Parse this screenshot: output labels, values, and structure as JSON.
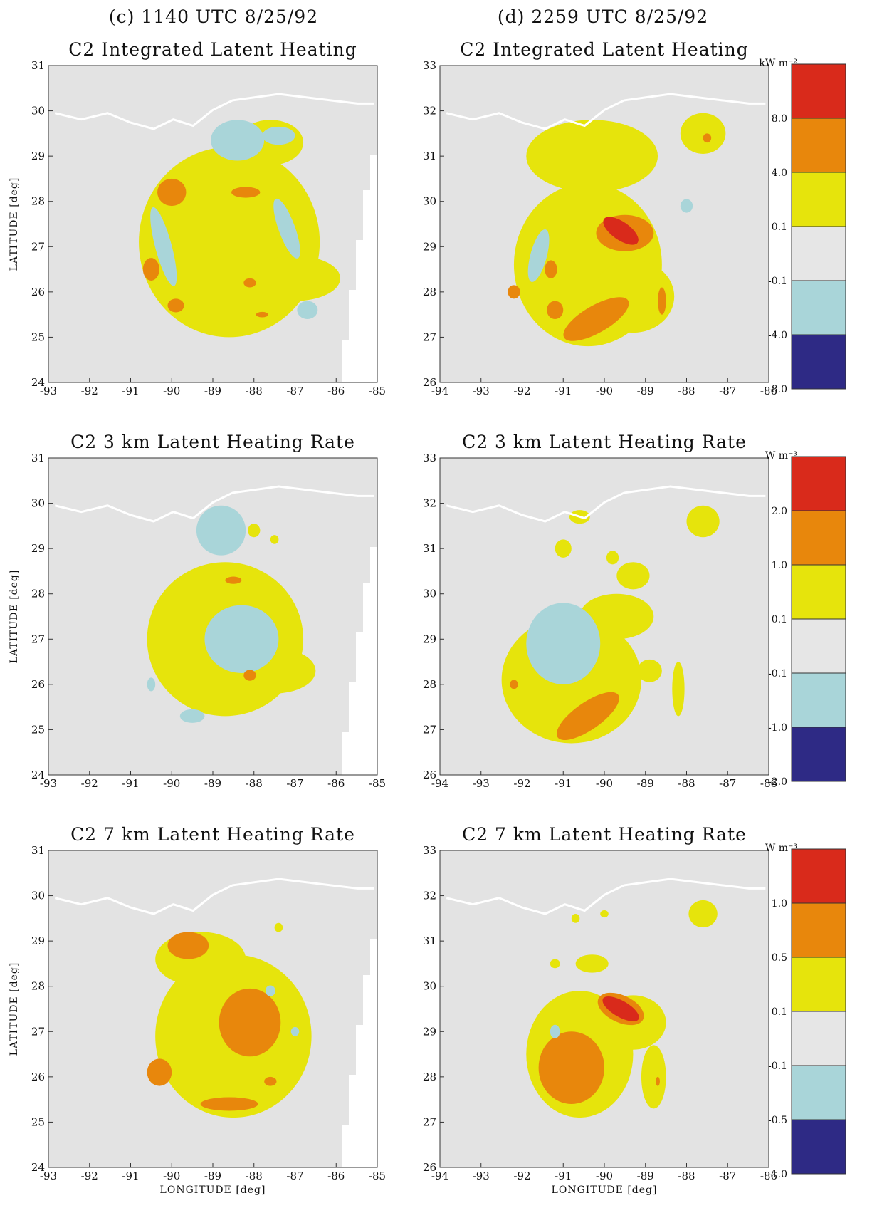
{
  "colors": {
    "plot_bg": "#e3e3e3",
    "coast": "#ffffff",
    "red": "#d92a1b",
    "orange": "#e8870c",
    "yellow": "#e6e40c",
    "lightgray": "#e6e6e6",
    "lightblue": "#a9d5d9",
    "navy": "#2e2a85"
  },
  "columns": [
    {
      "header": "(c) 1140 UTC 8/25/92"
    },
    {
      "header": "(d) 2259 UTC 8/25/92"
    }
  ],
  "rows": [
    {
      "title": "C2 Integrated Latent Heating",
      "unit": "kW m⁻²",
      "levels": [
        "8.0",
        "4.0",
        "0.1",
        "-0.1",
        "-4.0",
        "-8.0"
      ]
    },
    {
      "title": "C2 3 km Latent Heating Rate",
      "unit": "W m⁻³",
      "levels": [
        "2.0",
        "1.0",
        "0.1",
        "-0.1",
        "-1.0",
        "-2.0"
      ]
    },
    {
      "title": "C2 7 km Latent Heating Rate",
      "unit": "W m⁻³",
      "levels": [
        "1.0",
        "0.5",
        "0.1",
        "-0.1",
        "-0.5",
        "-1.0"
      ]
    }
  ],
  "chart_data": [
    {
      "type": "heatmap",
      "column": 0,
      "row": 0,
      "header": "(c) 1140 UTC 8/25/92",
      "title": "C2 Integrated Latent Heating",
      "xlim": [
        -93,
        -85
      ],
      "ylim": [
        24,
        31
      ],
      "xticks": [
        "-93",
        "-92",
        "-91",
        "-90",
        "-89",
        "-88",
        "-87",
        "-86",
        "-85"
      ],
      "yticks": [
        "24",
        "25",
        "26",
        "27",
        "28",
        "29",
        "30",
        "31"
      ],
      "ylabel": "LATITUDE [deg]",
      "xlabel": "",
      "storm_center": [
        -88.6,
        27.2
      ],
      "blobs": [
        {
          "c": "yellow",
          "cx": -88.6,
          "cy": 27.1,
          "rx": 2.2,
          "ry": 2.1
        },
        {
          "c": "yellow",
          "cx": -87.0,
          "cy": 26.3,
          "rx": 1.1,
          "ry": 0.5
        },
        {
          "c": "yellow",
          "cx": -87.6,
          "cy": 29.3,
          "rx": 0.8,
          "ry": 0.5
        },
        {
          "c": "blue",
          "cx": -88.4,
          "cy": 29.35,
          "rx": 0.65,
          "ry": 0.45
        },
        {
          "c": "blue",
          "cx": -87.4,
          "cy": 29.45,
          "rx": 0.4,
          "ry": 0.2
        },
        {
          "c": "blue",
          "cx": -90.2,
          "cy": 27.0,
          "rx": 0.2,
          "ry": 0.9,
          "rot": -15
        },
        {
          "c": "blue",
          "cx": -87.2,
          "cy": 27.4,
          "rx": 0.2,
          "ry": 0.7,
          "rot": -20
        },
        {
          "c": "blue",
          "cx": -86.7,
          "cy": 25.6,
          "rx": 0.25,
          "ry": 0.2
        },
        {
          "c": "orange",
          "cx": -90.0,
          "cy": 28.2,
          "rx": 0.35,
          "ry": 0.3
        },
        {
          "c": "orange",
          "cx": -88.2,
          "cy": 28.2,
          "rx": 0.35,
          "ry": 0.12
        },
        {
          "c": "orange",
          "cx": -90.5,
          "cy": 26.5,
          "rx": 0.2,
          "ry": 0.25
        },
        {
          "c": "orange",
          "cx": -89.9,
          "cy": 25.7,
          "rx": 0.2,
          "ry": 0.15
        },
        {
          "c": "orange",
          "cx": -88.1,
          "cy": 26.2,
          "rx": 0.15,
          "ry": 0.1
        },
        {
          "c": "orange",
          "cx": -87.8,
          "cy": 25.5,
          "rx": 0.15,
          "ry": 0.06
        }
      ]
    },
    {
      "type": "heatmap",
      "column": 1,
      "row": 0,
      "header": "(d) 2259 UTC 8/25/92",
      "title": "C2 Integrated Latent Heating",
      "xlim": [
        -94,
        -86
      ],
      "ylim": [
        26,
        33
      ],
      "xticks": [
        "-94",
        "-93",
        "-92",
        "-91",
        "-90",
        "-89",
        "-88",
        "-87",
        "-86"
      ],
      "yticks": [
        "26",
        "27",
        "28",
        "29",
        "30",
        "31",
        "32",
        "33"
      ],
      "ylabel": "",
      "xlabel": "",
      "storm_center": [
        -90.2,
        28.4
      ],
      "blobs": [
        {
          "c": "yellow",
          "cx": -90.4,
          "cy": 28.6,
          "rx": 1.8,
          "ry": 1.8
        },
        {
          "c": "yellow",
          "cx": -90.3,
          "cy": 31.0,
          "rx": 1.6,
          "ry": 0.8
        },
        {
          "c": "yellow",
          "cx": -87.6,
          "cy": 31.5,
          "rx": 0.55,
          "ry": 0.45
        },
        {
          "c": "yellow",
          "cx": -89.3,
          "cy": 27.9,
          "rx": 1.0,
          "ry": 0.8
        },
        {
          "c": "blue",
          "cx": -91.6,
          "cy": 28.8,
          "rx": 0.2,
          "ry": 0.6,
          "rot": 15
        },
        {
          "c": "blue",
          "cx": -88.0,
          "cy": 29.9,
          "rx": 0.15,
          "ry": 0.15
        },
        {
          "c": "orange",
          "cx": -89.5,
          "cy": 29.3,
          "rx": 0.7,
          "ry": 0.4
        },
        {
          "c": "orange",
          "cx": -90.2,
          "cy": 27.4,
          "rx": 0.9,
          "ry": 0.3,
          "rot": -30
        },
        {
          "c": "orange",
          "cx": -91.3,
          "cy": 28.5,
          "rx": 0.15,
          "ry": 0.2
        },
        {
          "c": "orange",
          "cx": -92.2,
          "cy": 28.0,
          "rx": 0.15,
          "ry": 0.15
        },
        {
          "c": "orange",
          "cx": -91.2,
          "cy": 27.6,
          "rx": 0.2,
          "ry": 0.2
        },
        {
          "c": "orange",
          "cx": -88.6,
          "cy": 27.8,
          "rx": 0.1,
          "ry": 0.3
        },
        {
          "c": "orange",
          "cx": -87.5,
          "cy": 31.4,
          "rx": 0.1,
          "ry": 0.1
        },
        {
          "c": "red",
          "cx": -89.6,
          "cy": 29.35,
          "rx": 0.5,
          "ry": 0.2,
          "rot": 35
        }
      ]
    },
    {
      "type": "heatmap",
      "column": 0,
      "row": 1,
      "header": "",
      "title": "C2 3 km Latent Heating Rate",
      "xlim": [
        -93,
        -85
      ],
      "ylim": [
        24,
        31
      ],
      "xticks": [
        "-93",
        "-92",
        "-91",
        "-90",
        "-89",
        "-88",
        "-87",
        "-86",
        "-85"
      ],
      "yticks": [
        "24",
        "25",
        "26",
        "27",
        "28",
        "29",
        "30",
        "31"
      ],
      "ylabel": "LATITUDE [deg]",
      "xlabel": "",
      "storm_center": [
        -88.3,
        27.0
      ],
      "blobs": [
        {
          "c": "yellow",
          "cx": -88.7,
          "cy": 27.0,
          "rx": 1.9,
          "ry": 1.7
        },
        {
          "c": "yellow",
          "cx": -87.5,
          "cy": 26.3,
          "rx": 1.0,
          "ry": 0.5
        },
        {
          "c": "yellow",
          "cx": -88.0,
          "cy": 29.4,
          "rx": 0.15,
          "ry": 0.15
        },
        {
          "c": "yellow",
          "cx": -87.5,
          "cy": 29.2,
          "rx": 0.1,
          "ry": 0.1
        },
        {
          "c": "blue",
          "cx": -88.3,
          "cy": 27.0,
          "rx": 0.9,
          "ry": 0.75
        },
        {
          "c": "blue",
          "cx": -88.8,
          "cy": 29.4,
          "rx": 0.6,
          "ry": 0.55
        },
        {
          "c": "blue",
          "cx": -89.5,
          "cy": 25.3,
          "rx": 0.3,
          "ry": 0.15
        },
        {
          "c": "blue",
          "cx": -90.5,
          "cy": 26.0,
          "rx": 0.1,
          "ry": 0.15
        },
        {
          "c": "orange",
          "cx": -88.1,
          "cy": 26.2,
          "rx": 0.15,
          "ry": 0.12
        },
        {
          "c": "orange",
          "cx": -88.5,
          "cy": 28.3,
          "rx": 0.2,
          "ry": 0.08
        }
      ]
    },
    {
      "type": "heatmap",
      "column": 1,
      "row": 1,
      "header": "",
      "title": "C2 3 km Latent Heating Rate",
      "xlim": [
        -94,
        -86
      ],
      "ylim": [
        26,
        33
      ],
      "xticks": [
        "-94",
        "-93",
        "-92",
        "-91",
        "-90",
        "-89",
        "-88",
        "-87",
        "-86"
      ],
      "yticks": [
        "26",
        "27",
        "28",
        "29",
        "30",
        "31",
        "32",
        "33"
      ],
      "ylabel": "",
      "xlabel": "",
      "storm_center": [
        -90.6,
        28.4
      ],
      "blobs": [
        {
          "c": "yellow",
          "cx": -90.8,
          "cy": 28.1,
          "rx": 1.7,
          "ry": 1.4
        },
        {
          "c": "yellow",
          "cx": -89.7,
          "cy": 29.5,
          "rx": 0.9,
          "ry": 0.5
        },
        {
          "c": "yellow",
          "cx": -87.6,
          "cy": 31.6,
          "rx": 0.4,
          "ry": 0.35
        },
        {
          "c": "yellow",
          "cx": -90.6,
          "cy": 31.7,
          "rx": 0.25,
          "ry": 0.15
        },
        {
          "c": "yellow",
          "cx": -91.0,
          "cy": 31.0,
          "rx": 0.2,
          "ry": 0.2
        },
        {
          "c": "yellow",
          "cx": -89.8,
          "cy": 30.8,
          "rx": 0.15,
          "ry": 0.15
        },
        {
          "c": "yellow",
          "cx": -89.3,
          "cy": 30.4,
          "rx": 0.4,
          "ry": 0.3
        },
        {
          "c": "yellow",
          "cx": -88.9,
          "cy": 28.3,
          "rx": 0.3,
          "ry": 0.25
        },
        {
          "c": "yellow",
          "cx": -88.2,
          "cy": 27.9,
          "rx": 0.15,
          "ry": 0.6
        },
        {
          "c": "blue",
          "cx": -91.0,
          "cy": 28.9,
          "rx": 0.9,
          "ry": 0.9
        },
        {
          "c": "orange",
          "cx": -90.4,
          "cy": 27.3,
          "rx": 0.9,
          "ry": 0.3,
          "rot": -35
        },
        {
          "c": "orange",
          "cx": -92.2,
          "cy": 28.0,
          "rx": 0.1,
          "ry": 0.1
        }
      ]
    },
    {
      "type": "heatmap",
      "column": 0,
      "row": 2,
      "header": "",
      "title": "C2 7 km Latent Heating Rate",
      "xlim": [
        -93,
        -85
      ],
      "ylim": [
        24,
        31
      ],
      "xticks": [
        "-93",
        "-92",
        "-91",
        "-90",
        "-89",
        "-88",
        "-87",
        "-86",
        "-85"
      ],
      "yticks": [
        "24",
        "25",
        "26",
        "27",
        "28",
        "29",
        "30",
        "31"
      ],
      "ylabel": "LATITUDE [deg]",
      "xlabel": "LONGITUDE [deg]",
      "storm_center": [
        -88.0,
        27.2
      ],
      "blobs": [
        {
          "c": "yellow",
          "cx": -88.5,
          "cy": 26.9,
          "rx": 1.9,
          "ry": 1.8
        },
        {
          "c": "yellow",
          "cx": -89.3,
          "cy": 28.6,
          "rx": 1.1,
          "ry": 0.6
        },
        {
          "c": "yellow",
          "cx": -87.4,
          "cy": 29.3,
          "rx": 0.1,
          "ry": 0.1
        },
        {
          "c": "orange",
          "cx": -88.1,
          "cy": 27.2,
          "rx": 0.75,
          "ry": 0.75
        },
        {
          "c": "orange",
          "cx": -89.6,
          "cy": 28.9,
          "rx": 0.5,
          "ry": 0.3
        },
        {
          "c": "orange",
          "cx": -88.6,
          "cy": 25.4,
          "rx": 0.7,
          "ry": 0.15
        },
        {
          "c": "orange",
          "cx": -90.3,
          "cy": 26.1,
          "rx": 0.3,
          "ry": 0.3
        },
        {
          "c": "orange",
          "cx": -87.6,
          "cy": 25.9,
          "rx": 0.15,
          "ry": 0.1
        },
        {
          "c": "blue",
          "cx": -87.6,
          "cy": 27.9,
          "rx": 0.12,
          "ry": 0.12
        },
        {
          "c": "blue",
          "cx": -87.0,
          "cy": 27.0,
          "rx": 0.1,
          "ry": 0.1
        }
      ]
    },
    {
      "type": "heatmap",
      "column": 1,
      "row": 2,
      "header": "",
      "title": "C2 7 km Latent Heating Rate",
      "xlim": [
        -94,
        -86
      ],
      "ylim": [
        26,
        33
      ],
      "xticks": [
        "-94",
        "-93",
        "-92",
        "-91",
        "-90",
        "-89",
        "-88",
        "-87",
        "-86"
      ],
      "yticks": [
        "26",
        "27",
        "28",
        "29",
        "30",
        "31",
        "32",
        "33"
      ],
      "ylabel": "",
      "xlabel": "LONGITUDE [deg]",
      "storm_center": [
        -90.5,
        28.4
      ],
      "blobs": [
        {
          "c": "yellow",
          "cx": -90.6,
          "cy": 28.5,
          "rx": 1.3,
          "ry": 1.4
        },
        {
          "c": "yellow",
          "cx": -89.3,
          "cy": 29.2,
          "rx": 0.8,
          "ry": 0.6
        },
        {
          "c": "yellow",
          "cx": -88.8,
          "cy": 28.0,
          "rx": 0.3,
          "ry": 0.7
        },
        {
          "c": "yellow",
          "cx": -87.6,
          "cy": 31.6,
          "rx": 0.35,
          "ry": 0.3
        },
        {
          "c": "yellow",
          "cx": -90.3,
          "cy": 30.5,
          "rx": 0.4,
          "ry": 0.2
        },
        {
          "c": "yellow",
          "cx": -91.2,
          "cy": 30.5,
          "rx": 0.12,
          "ry": 0.1
        },
        {
          "c": "yellow",
          "cx": -90.7,
          "cy": 31.5,
          "rx": 0.1,
          "ry": 0.1
        },
        {
          "c": "yellow",
          "cx": -90.0,
          "cy": 31.6,
          "rx": 0.1,
          "ry": 0.08
        },
        {
          "c": "orange",
          "cx": -90.8,
          "cy": 28.2,
          "rx": 0.8,
          "ry": 0.8
        },
        {
          "c": "orange",
          "cx": -89.6,
          "cy": 29.5,
          "rx": 0.6,
          "ry": 0.3,
          "rot": 25
        },
        {
          "c": "orange",
          "cx": -88.7,
          "cy": 27.9,
          "rx": 0.05,
          "ry": 0.1
        },
        {
          "c": "red",
          "cx": -89.6,
          "cy": 29.5,
          "rx": 0.5,
          "ry": 0.18,
          "rot": 30
        },
        {
          "c": "blue",
          "cx": -91.2,
          "cy": 29.0,
          "rx": 0.12,
          "ry": 0.15
        }
      ]
    }
  ]
}
